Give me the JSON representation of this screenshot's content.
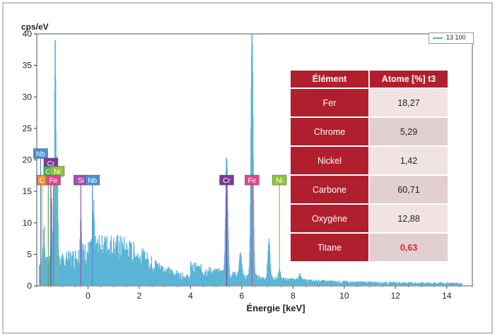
{
  "chart_data": {
    "type": "line",
    "ylabel": "cps/eV",
    "xlabel": "Énergie [keV]",
    "xlim": [
      -2,
      15
    ],
    "ylim": [
      0,
      40
    ],
    "xticks": [
      0,
      2,
      4,
      6,
      8,
      10,
      12,
      14
    ],
    "yticks": [
      0,
      5,
      10,
      15,
      20,
      25,
      30,
      35,
      40
    ],
    "series": [
      {
        "name": "13 100",
        "color": "#5ab4d6",
        "peaks": [
          {
            "x": -1.72,
            "y": 6.5
          },
          {
            "x": -1.42,
            "y": 11.0
          },
          {
            "x": -1.28,
            "y": 37.0
          },
          {
            "x": -1.2,
            "y": 16.5
          },
          {
            "x": -0.28,
            "y": 7.0
          },
          {
            "x": 0.22,
            "y": 6.0
          },
          {
            "x": 5.41,
            "y": 19.3
          },
          {
            "x": 5.95,
            "y": 3.6
          },
          {
            "x": 6.4,
            "y": 40.0
          },
          {
            "x": 7.06,
            "y": 6.0
          },
          {
            "x": 7.47,
            "y": 1.5
          },
          {
            "x": 8.26,
            "y": 1.0
          }
        ]
      }
    ],
    "element_markers": [
      {
        "label": "Nb",
        "x": -1.85,
        "level": 21.0,
        "color": "#4a8fd2"
      },
      {
        "label": "Cr",
        "x": -1.45,
        "level": 19.5,
        "color": "#7b3a96"
      },
      {
        "label": "O",
        "x": -1.55,
        "level": 18.2,
        "color": "#4cae4c"
      },
      {
        "label": "Ni",
        "x": -1.2,
        "level": 18.2,
        "color": "#8fc43c"
      },
      {
        "label": "C",
        "x": -1.8,
        "level": 16.8,
        "color": "#f0902e"
      },
      {
        "label": "Fe",
        "x": -1.35,
        "level": 16.8,
        "color": "#e2468f"
      },
      {
        "label": "Si",
        "x": -0.28,
        "level": 16.8,
        "color": "#a54fb0"
      },
      {
        "label": "Nb",
        "x": 0.17,
        "level": 16.8,
        "color": "#4a8fd2"
      },
      {
        "label": "Cr",
        "x": 5.41,
        "level": 16.8,
        "color": "#7b3a96"
      },
      {
        "label": "Fe",
        "x": 6.4,
        "level": 16.8,
        "color": "#e2468f"
      },
      {
        "label": "Ni",
        "x": 7.47,
        "level": 16.8,
        "color": "#8fc43c"
      }
    ],
    "table": {
      "headers": [
        "Élément",
        "Atome [%] t3"
      ],
      "rows": [
        [
          "Fer",
          "18,27"
        ],
        [
          "Chrome",
          "5,29"
        ],
        [
          "Nickel",
          "1,42"
        ],
        [
          "Carbone",
          "60,71"
        ],
        [
          "Oxygène",
          "12,88"
        ],
        [
          "Titane",
          "0,63"
        ]
      ]
    }
  }
}
